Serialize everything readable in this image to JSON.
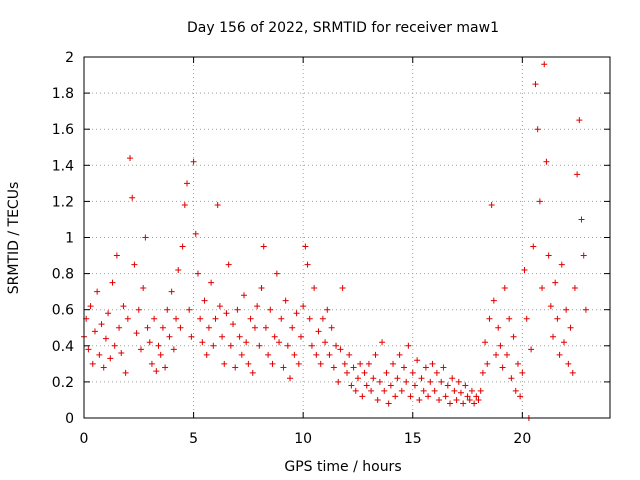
{
  "chart_data": {
    "type": "scatter",
    "title": "Day 156 of 2022, SRMTID for receiver maw1",
    "xlabel": "GPS time / hours",
    "ylabel": "SRMTID / TECUs",
    "xlim": [
      0,
      24
    ],
    "ylim": [
      0,
      2
    ],
    "grid": true,
    "marker": "+",
    "color": "#e00000",
    "x_ticks": [
      0,
      5,
      10,
      15,
      20
    ],
    "x_tick_labels": [
      "0",
      "5",
      "10",
      "15",
      "20"
    ],
    "y_ticks": [
      0,
      0.2,
      0.4,
      0.6,
      0.8,
      1,
      1.2,
      1.4,
      1.6,
      1.8,
      2
    ],
    "y_tick_labels": [
      "0",
      "0.2",
      "0.4",
      "0.6",
      "0.8",
      "1",
      "1.2",
      "1.4",
      "1.6",
      "1.8",
      "2"
    ],
    "series": [
      {
        "name": "maw1",
        "points": [
          [
            0.0,
            0.45
          ],
          [
            0.1,
            0.55
          ],
          [
            0.2,
            0.38
          ],
          [
            0.3,
            0.62
          ],
          [
            0.4,
            0.3
          ],
          [
            0.5,
            0.48
          ],
          [
            0.6,
            0.7
          ],
          [
            0.7,
            0.35
          ],
          [
            0.8,
            0.52
          ],
          [
            0.9,
            0.28
          ],
          [
            1.0,
            0.44
          ],
          [
            1.1,
            0.58
          ],
          [
            1.2,
            0.33
          ],
          [
            1.3,
            0.75
          ],
          [
            1.4,
            0.4
          ],
          [
            1.5,
            0.9
          ],
          [
            1.6,
            0.5
          ],
          [
            1.7,
            0.36
          ],
          [
            1.8,
            0.62
          ],
          [
            1.9,
            0.25
          ],
          [
            2.0,
            0.55
          ],
          [
            2.1,
            1.44
          ],
          [
            2.2,
            1.22
          ],
          [
            2.3,
            0.85
          ],
          [
            2.4,
            0.47
          ],
          [
            2.5,
            0.6
          ],
          [
            2.6,
            0.38
          ],
          [
            2.7,
            0.72
          ],
          [
            2.8,
            1.0
          ],
          [
            2.9,
            0.5
          ],
          [
            3.0,
            0.42
          ],
          [
            3.1,
            0.3
          ],
          [
            3.2,
            0.55
          ],
          [
            3.3,
            0.26
          ],
          [
            3.4,
            0.4
          ],
          [
            3.5,
            0.35
          ],
          [
            3.6,
            0.5
          ],
          [
            3.7,
            0.28
          ],
          [
            3.8,
            0.6
          ],
          [
            3.9,
            0.45
          ],
          [
            4.0,
            0.7
          ],
          [
            4.1,
            0.38
          ],
          [
            4.2,
            0.55
          ],
          [
            4.3,
            0.82
          ],
          [
            4.4,
            0.5
          ],
          [
            4.5,
            0.95
          ],
          [
            4.6,
            1.18
          ],
          [
            4.7,
            1.3
          ],
          [
            4.8,
            0.6
          ],
          [
            4.9,
            0.45
          ],
          [
            5.0,
            1.42
          ],
          [
            5.1,
            1.02
          ],
          [
            5.2,
            0.8
          ],
          [
            5.3,
            0.55
          ],
          [
            5.4,
            0.42
          ],
          [
            5.5,
            0.65
          ],
          [
            5.6,
            0.35
          ],
          [
            5.7,
            0.5
          ],
          [
            5.8,
            0.75
          ],
          [
            5.9,
            0.4
          ],
          [
            6.0,
            0.55
          ],
          [
            6.1,
            1.18
          ],
          [
            6.2,
            0.62
          ],
          [
            6.3,
            0.45
          ],
          [
            6.4,
            0.3
          ],
          [
            6.5,
            0.58
          ],
          [
            6.6,
            0.85
          ],
          [
            6.7,
            0.4
          ],
          [
            6.8,
            0.52
          ],
          [
            6.9,
            0.28
          ],
          [
            7.0,
            0.6
          ],
          [
            7.1,
            0.45
          ],
          [
            7.2,
            0.35
          ],
          [
            7.3,
            0.68
          ],
          [
            7.4,
            0.42
          ],
          [
            7.5,
            0.3
          ],
          [
            7.6,
            0.55
          ],
          [
            7.7,
            0.25
          ],
          [
            7.8,
            0.5
          ],
          [
            7.9,
            0.62
          ],
          [
            8.0,
            0.4
          ],
          [
            8.1,
            0.72
          ],
          [
            8.2,
            0.95
          ],
          [
            8.3,
            0.5
          ],
          [
            8.4,
            0.35
          ],
          [
            8.5,
            0.6
          ],
          [
            8.6,
            0.3
          ],
          [
            8.7,
            0.45
          ],
          [
            8.8,
            0.8
          ],
          [
            8.9,
            0.42
          ],
          [
            9.0,
            0.55
          ],
          [
            9.1,
            0.28
          ],
          [
            9.2,
            0.65
          ],
          [
            9.3,
            0.4
          ],
          [
            9.4,
            0.22
          ],
          [
            9.5,
            0.5
          ],
          [
            9.6,
            0.35
          ],
          [
            9.7,
            0.58
          ],
          [
            9.8,
            0.3
          ],
          [
            9.9,
            0.45
          ],
          [
            10.0,
            0.62
          ],
          [
            10.1,
            0.95
          ],
          [
            10.2,
            0.85
          ],
          [
            10.3,
            0.55
          ],
          [
            10.4,
            0.4
          ],
          [
            10.5,
            0.72
          ],
          [
            10.6,
            0.35
          ],
          [
            10.7,
            0.48
          ],
          [
            10.8,
            0.3
          ],
          [
            10.9,
            0.55
          ],
          [
            11.0,
            0.42
          ],
          [
            11.1,
            0.6
          ],
          [
            11.2,
            0.35
          ],
          [
            11.3,
            0.5
          ],
          [
            11.4,
            0.28
          ],
          [
            11.5,
            0.4
          ],
          [
            11.6,
            0.2
          ],
          [
            11.7,
            0.38
          ],
          [
            11.8,
            0.72
          ],
          [
            11.9,
            0.3
          ],
          [
            12.0,
            0.25
          ],
          [
            12.1,
            0.35
          ],
          [
            12.2,
            0.18
          ],
          [
            12.3,
            0.28
          ],
          [
            12.4,
            0.15
          ],
          [
            12.5,
            0.22
          ],
          [
            12.6,
            0.3
          ],
          [
            12.7,
            0.12
          ],
          [
            12.8,
            0.25
          ],
          [
            12.9,
            0.18
          ],
          [
            13.0,
            0.3
          ],
          [
            13.1,
            0.15
          ],
          [
            13.2,
            0.22
          ],
          [
            13.3,
            0.35
          ],
          [
            13.4,
            0.1
          ],
          [
            13.5,
            0.2
          ],
          [
            13.6,
            0.42
          ],
          [
            13.7,
            0.15
          ],
          [
            13.8,
            0.25
          ],
          [
            13.9,
            0.08
          ],
          [
            14.0,
            0.18
          ],
          [
            14.1,
            0.3
          ],
          [
            14.2,
            0.12
          ],
          [
            14.3,
            0.22
          ],
          [
            14.4,
            0.35
          ],
          [
            14.5,
            0.15
          ],
          [
            14.6,
            0.28
          ],
          [
            14.7,
            0.2
          ],
          [
            14.8,
            0.4
          ],
          [
            14.9,
            0.12
          ],
          [
            15.0,
            0.25
          ],
          [
            15.1,
            0.18
          ],
          [
            15.2,
            0.32
          ],
          [
            15.3,
            0.1
          ],
          [
            15.4,
            0.22
          ],
          [
            15.5,
            0.15
          ],
          [
            15.6,
            0.28
          ],
          [
            15.7,
            0.12
          ],
          [
            15.8,
            0.2
          ],
          [
            15.9,
            0.3
          ],
          [
            16.0,
            0.15
          ],
          [
            16.1,
            0.25
          ],
          [
            16.2,
            0.1
          ],
          [
            16.3,
            0.2
          ],
          [
            16.4,
            0.28
          ],
          [
            16.5,
            0.12
          ],
          [
            16.6,
            0.18
          ],
          [
            16.7,
            0.08
          ],
          [
            16.8,
            0.22
          ],
          [
            16.9,
            0.15
          ],
          [
            17.0,
            0.1
          ],
          [
            17.1,
            0.2
          ],
          [
            17.2,
            0.14
          ],
          [
            17.3,
            0.08
          ],
          [
            17.4,
            0.18
          ],
          [
            17.5,
            0.12
          ],
          [
            17.6,
            0.1
          ],
          [
            17.7,
            0.15
          ],
          [
            17.8,
            0.08
          ],
          [
            17.9,
            0.12
          ],
          [
            18.0,
            0.1
          ],
          [
            18.1,
            0.15
          ],
          [
            18.2,
            0.25
          ],
          [
            18.3,
            0.42
          ],
          [
            18.4,
            0.3
          ],
          [
            18.5,
            0.55
          ],
          [
            18.6,
            1.18
          ],
          [
            18.7,
            0.65
          ],
          [
            18.8,
            0.35
          ],
          [
            18.9,
            0.5
          ],
          [
            19.0,
            0.4
          ],
          [
            19.1,
            0.28
          ],
          [
            19.2,
            0.72
          ],
          [
            19.3,
            0.35
          ],
          [
            19.4,
            0.55
          ],
          [
            19.5,
            0.22
          ],
          [
            19.6,
            0.45
          ],
          [
            19.7,
            0.15
          ],
          [
            19.8,
            0.3
          ],
          [
            19.9,
            0.12
          ],
          [
            20.0,
            0.25
          ],
          [
            20.1,
            0.82
          ],
          [
            20.2,
            0.55
          ],
          [
            20.3,
            0.0
          ],
          [
            20.4,
            0.38
          ],
          [
            20.5,
            0.95
          ],
          [
            20.6,
            1.85
          ],
          [
            20.7,
            1.6
          ],
          [
            20.8,
            1.2
          ],
          [
            20.9,
            0.72
          ],
          [
            21.0,
            1.96
          ],
          [
            21.1,
            1.42
          ],
          [
            21.2,
            0.9
          ],
          [
            21.3,
            0.62
          ],
          [
            21.4,
            0.45
          ],
          [
            21.5,
            0.75
          ],
          [
            21.6,
            0.55
          ],
          [
            21.7,
            0.35
          ],
          [
            21.8,
            0.85
          ],
          [
            21.9,
            0.42
          ],
          [
            22.0,
            0.6
          ],
          [
            22.1,
            0.3
          ],
          [
            22.2,
            0.5
          ],
          [
            22.3,
            0.25
          ],
          [
            22.4,
            0.72
          ],
          [
            22.5,
            1.35
          ],
          [
            22.6,
            1.65
          ],
          [
            22.7,
            1.1
          ],
          [
            22.8,
            0.9
          ],
          [
            22.9,
            0.6
          ]
        ]
      }
    ]
  }
}
